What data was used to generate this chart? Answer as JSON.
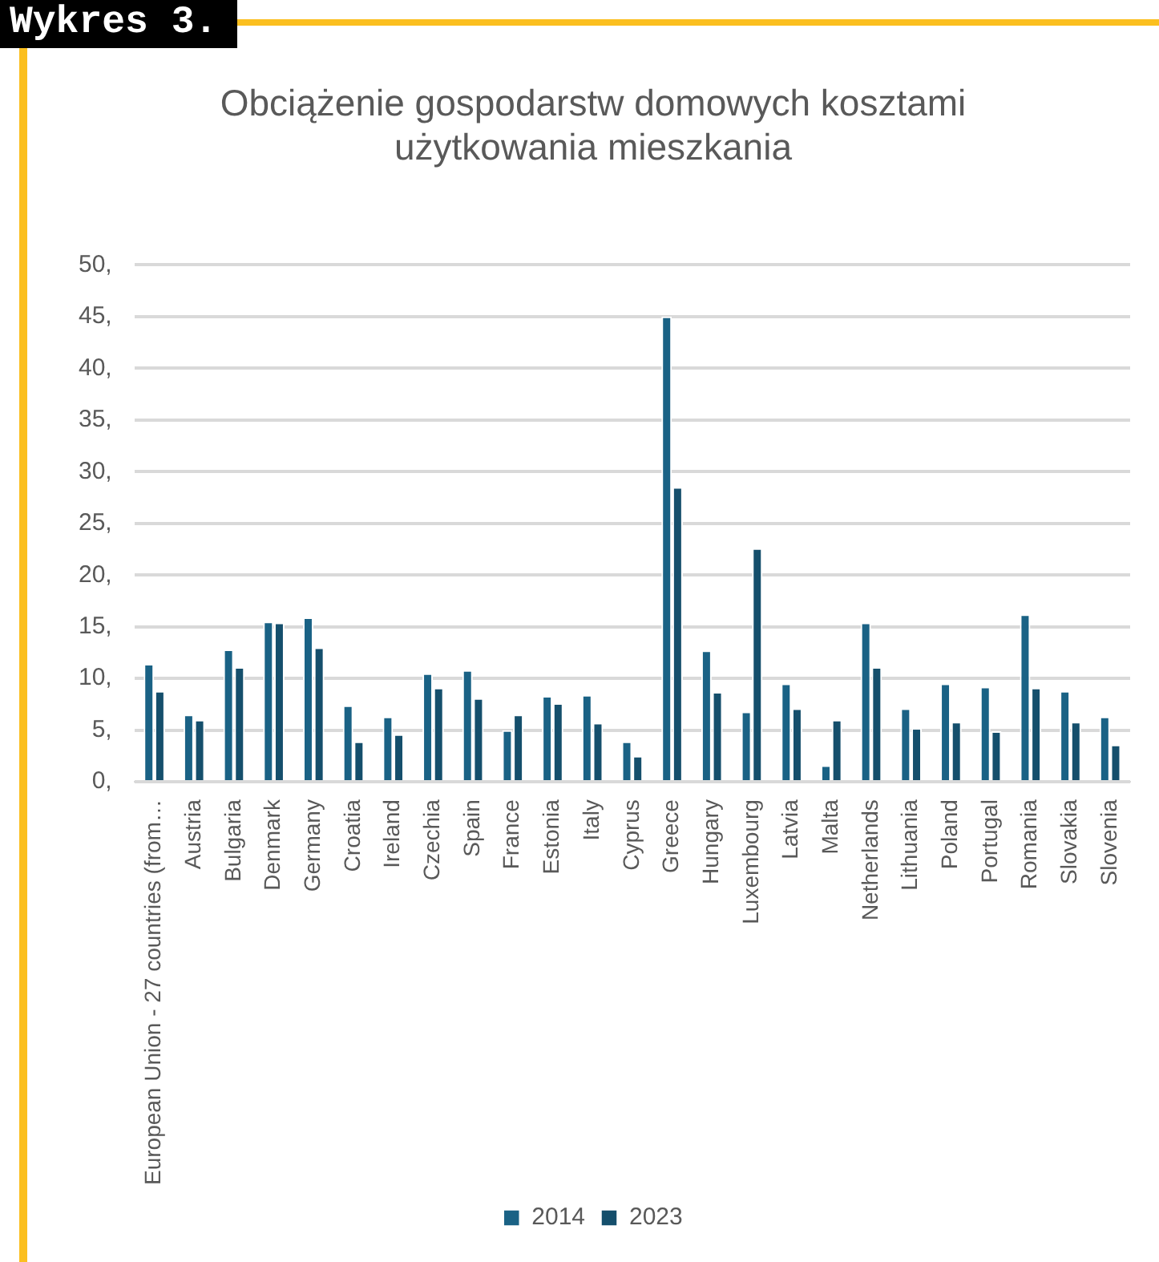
{
  "chart_data": {
    "type": "bar",
    "title": [
      "Obciążenie gospodarstw domowych kosztami",
      "użytkowania mieszkania"
    ],
    "annotations": [
      "Wykres 3."
    ],
    "categories": [
      "European Union - 27 countries (from…",
      "Austria",
      "Bulgaria",
      "Denmark",
      "Germany",
      "Croatia",
      "Ireland",
      "Czechia",
      "Spain",
      "France",
      "Estonia",
      "Italy",
      "Cyprus",
      "Greece",
      "Hungary",
      "Luxembourg",
      "Latvia",
      "Malta",
      "Netherlands",
      "Lithuania",
      "Poland",
      "Portugal",
      "Romania",
      "Slovakia",
      "Slovenia"
    ],
    "series": [
      {
        "name": "2014",
        "color": "#1a6285",
        "values": [
          11.4,
          6.5,
          12.8,
          15.5,
          15.9,
          7.4,
          6.3,
          10.5,
          10.8,
          5.0,
          8.3,
          8.4,
          3.9,
          45.0,
          12.7,
          6.8,
          9.5,
          1.6,
          15.4,
          7.1,
          9.5,
          9.2,
          16.2,
          8.8,
          6.3
        ]
      },
      {
        "name": "2023",
        "color": "#154f6c",
        "values": [
          8.8,
          6.0,
          11.1,
          15.4,
          13.0,
          3.9,
          4.6,
          9.1,
          8.1,
          6.5,
          7.6,
          5.7,
          2.5,
          28.5,
          8.7,
          22.6,
          7.1,
          6.0,
          11.1,
          5.2,
          5.8,
          4.9,
          9.1,
          5.8,
          3.6
        ]
      }
    ],
    "ylim": [
      0,
      50
    ],
    "yticks": [
      {
        "value": 0,
        "label": "0,"
      },
      {
        "value": 5,
        "label": "5,"
      },
      {
        "value": 10,
        "label": "10,"
      },
      {
        "value": 15,
        "label": "15,"
      },
      {
        "value": 20,
        "label": "20,"
      },
      {
        "value": 25,
        "label": "25,"
      },
      {
        "value": 30,
        "label": "30,"
      },
      {
        "value": 35,
        "label": "35,"
      },
      {
        "value": 40,
        "label": "40,"
      },
      {
        "value": 45,
        "label": "45,"
      },
      {
        "value": 50,
        "label": "50,"
      }
    ],
    "grid": "y",
    "legend": "bottom"
  }
}
